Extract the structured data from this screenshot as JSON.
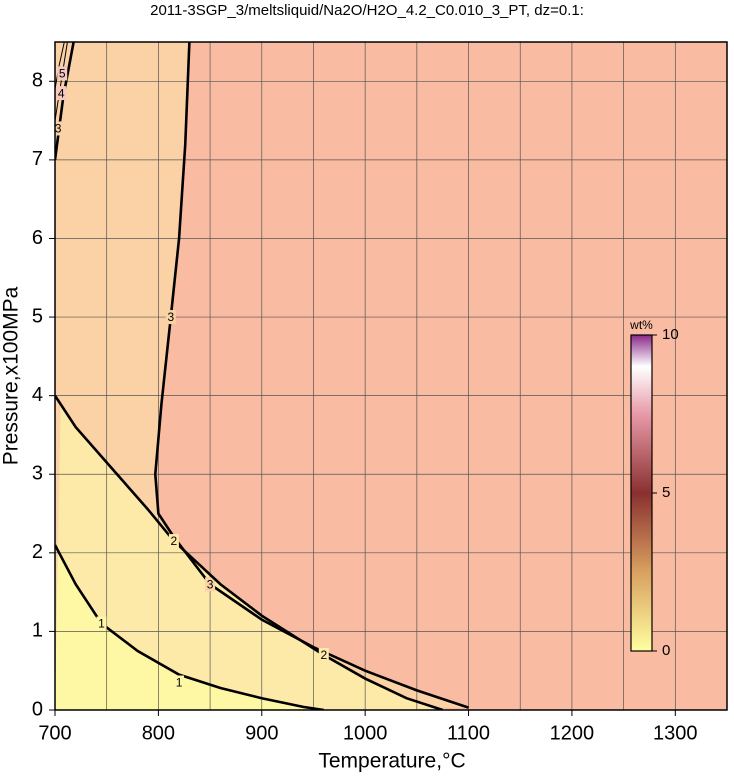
{
  "chart_data": {
    "type": "contour",
    "title": "2011-3SGP_3/meltsliquid/Na2O/H2O_4.2_C0.010_3_PT, dz=0.1:",
    "x_label": "Temperature,°C",
    "y_label": "Pressure,x100MPa",
    "xlim": [
      700,
      1350
    ],
    "ylim": [
      0,
      8.5
    ],
    "xticks": [
      700,
      800,
      900,
      1000,
      1100,
      1200,
      1300
    ],
    "xminor": [
      750,
      850,
      950,
      1050,
      1150,
      1250
    ],
    "yticks": [
      0,
      1,
      2,
      3,
      4,
      5,
      6,
      7,
      8
    ],
    "grid": true,
    "background": "#f9bca2",
    "series": [
      {
        "name": "3",
        "fill": "#fbd2a6",
        "x": [
          830,
          826,
          820,
          812,
          803,
          797,
          800,
          815,
          850,
          900,
          950,
          1000,
          1050,
          1100,
          null,
          700,
          708,
          718
        ],
        "y": [
          8.5,
          7.2,
          6,
          5,
          3.9,
          3,
          2.5,
          2.2,
          1.6,
          1.15,
          0.8,
          0.5,
          0.25,
          0.03,
          null,
          7.0,
          7.8,
          8.5
        ],
        "labels": [
          {
            "x": 812,
            "y": 5
          },
          {
            "x": 850,
            "y": 1.6
          },
          {
            "x": 703,
            "y": 7.4
          }
        ]
      },
      {
        "name": "2",
        "fill": "#fdeaa9",
        "x": [
          700,
          720,
          760,
          790,
          815,
          860,
          900,
          960,
          1000,
          1040,
          1075
        ],
        "y": [
          4.0,
          3.6,
          3.0,
          2.55,
          2.15,
          1.6,
          1.2,
          0.7,
          0.4,
          0.15,
          0
        ],
        "labels": [
          {
            "x": 815,
            "y": 2.15
          },
          {
            "x": 960,
            "y": 0.7
          }
        ]
      },
      {
        "name": "1",
        "fill": "#fef8a4",
        "x": [
          700,
          720,
          745,
          780,
          820,
          860,
          900,
          940,
          960
        ],
        "y": [
          2.1,
          1.6,
          1.1,
          0.75,
          0.45,
          0.28,
          0.15,
          0.04,
          0
        ],
        "labels": [
          {
            "x": 745,
            "y": 1.1
          },
          {
            "x": 820,
            "y": 0.35
          }
        ]
      },
      {
        "name": "4",
        "fill": "#fbd2a6",
        "x": [
          700,
          706,
          712
        ],
        "y": [
          7.5,
          8.0,
          8.5
        ],
        "labels": [
          {
            "x": 706,
            "y": 7.85
          }
        ]
      },
      {
        "name": "5",
        "fill": "#fbd2a6",
        "x": [
          700,
          704,
          709
        ],
        "y": [
          7.9,
          8.2,
          8.5
        ],
        "labels": [
          {
            "x": 707,
            "y": 8.1
          }
        ]
      }
    ],
    "colorbar": {
      "label": "wt%",
      "lim": [
        0,
        10
      ],
      "ticks": [
        0,
        5,
        10
      ],
      "stops": [
        {
          "value": 0,
          "color": "#ffffa0"
        },
        {
          "value": 2.5,
          "color": "#d9a060"
        },
        {
          "value": 5,
          "color": "#8a3030"
        },
        {
          "value": 7.5,
          "color": "#e89aa8"
        },
        {
          "value": 9,
          "color": "#ffffff"
        },
        {
          "value": 10,
          "color": "#8a2a8a"
        }
      ]
    }
  }
}
